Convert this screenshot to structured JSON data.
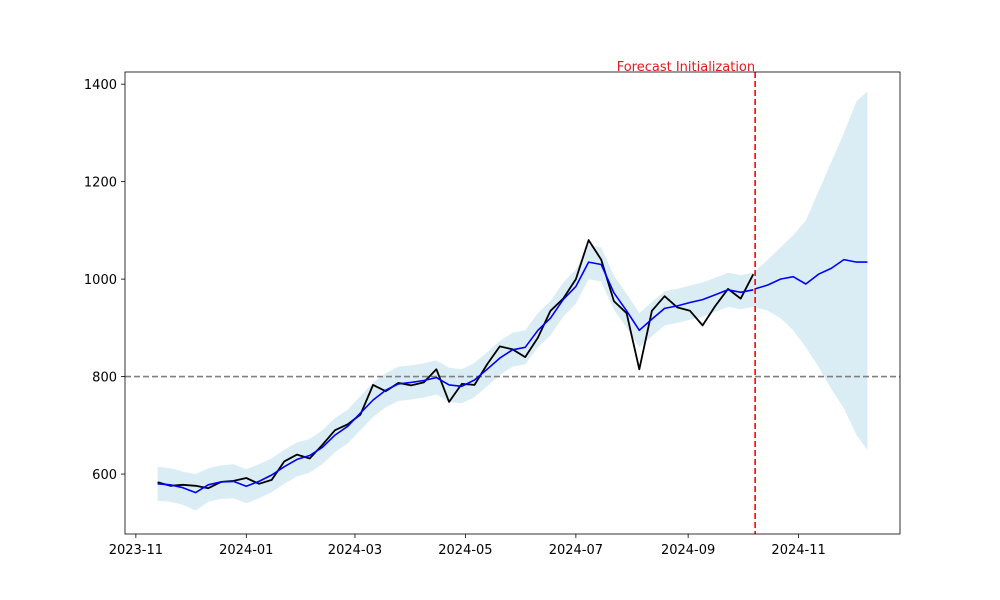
{
  "chart_data": {
    "type": "line",
    "title": "",
    "xlabel": "",
    "ylabel": "",
    "xlim": [
      "2023-10-26",
      "2024-12-27"
    ],
    "ylim": [
      477,
      1425
    ],
    "x_ticks": [
      "2023-11",
      "2024-01",
      "2024-03",
      "2024-05",
      "2024-07",
      "2024-09",
      "2024-11"
    ],
    "y_ticks": [
      600,
      800,
      1000,
      1200,
      1400
    ],
    "grid": false,
    "legend": "none",
    "reference_line": {
      "y": 800,
      "color": "#808080",
      "style": "dashed"
    },
    "forecast_initialization": {
      "date": "2024-10-08",
      "label": "Forecast Initialization",
      "color": "#e31a1c"
    },
    "colors": {
      "actual": "#000000",
      "model": "#0000ff",
      "band": "#add8e6",
      "forecast_line": "#ff0000",
      "reference": "#808080"
    },
    "actual": [
      [
        "2023-11-13",
        583
      ],
      [
        "2023-11-20",
        576
      ],
      [
        "2023-11-27",
        578
      ],
      [
        "2023-12-04",
        576
      ],
      [
        "2023-12-11",
        571
      ],
      [
        "2023-12-18",
        584
      ],
      [
        "2023-12-25",
        586
      ],
      [
        "2024-01-01",
        592
      ],
      [
        "2024-01-08",
        580
      ],
      [
        "2024-01-15",
        588
      ],
      [
        "2024-01-22",
        626
      ],
      [
        "2024-01-29",
        640
      ],
      [
        "2024-02-05",
        632
      ],
      [
        "2024-02-12",
        660
      ],
      [
        "2024-02-19",
        690
      ],
      [
        "2024-02-26",
        702
      ],
      [
        "2024-03-04",
        722
      ],
      [
        "2024-03-11",
        783
      ],
      [
        "2024-03-18",
        770
      ],
      [
        "2024-03-25",
        787
      ],
      [
        "2024-04-01",
        782
      ],
      [
        "2024-04-08",
        788
      ],
      [
        "2024-04-15",
        815
      ],
      [
        "2024-04-22",
        748
      ],
      [
        "2024-04-29",
        785
      ],
      [
        "2024-05-06",
        783
      ],
      [
        "2024-05-13",
        825
      ],
      [
        "2024-05-20",
        862
      ],
      [
        "2024-05-27",
        856
      ],
      [
        "2024-06-03",
        840
      ],
      [
        "2024-06-10",
        880
      ],
      [
        "2024-06-17",
        935
      ],
      [
        "2024-06-24",
        960
      ],
      [
        "2024-07-01",
        1000
      ],
      [
        "2024-07-08",
        1080
      ],
      [
        "2024-07-15",
        1040
      ],
      [
        "2024-07-22",
        955
      ],
      [
        "2024-07-29",
        930
      ],
      [
        "2024-08-05",
        815
      ],
      [
        "2024-08-12",
        935
      ],
      [
        "2024-08-19",
        965
      ],
      [
        "2024-08-26",
        942
      ],
      [
        "2024-09-02",
        935
      ],
      [
        "2024-09-09",
        905
      ],
      [
        "2024-09-16",
        945
      ],
      [
        "2024-09-23",
        980
      ],
      [
        "2024-09-30",
        960
      ],
      [
        "2024-10-07",
        1010
      ]
    ],
    "model_fit": [
      [
        "2023-11-13",
        580
      ],
      [
        "2023-11-20",
        578
      ],
      [
        "2023-11-27",
        572
      ],
      [
        "2023-12-04",
        562
      ],
      [
        "2023-12-11",
        578
      ],
      [
        "2023-12-18",
        584
      ],
      [
        "2023-12-25",
        585
      ],
      [
        "2024-01-01",
        575
      ],
      [
        "2024-01-08",
        585
      ],
      [
        "2024-01-15",
        598
      ],
      [
        "2024-01-22",
        615
      ],
      [
        "2024-01-29",
        630
      ],
      [
        "2024-02-05",
        638
      ],
      [
        "2024-02-12",
        655
      ],
      [
        "2024-02-19",
        680
      ],
      [
        "2024-02-26",
        698
      ],
      [
        "2024-03-04",
        725
      ],
      [
        "2024-03-11",
        752
      ],
      [
        "2024-03-18",
        772
      ],
      [
        "2024-03-25",
        785
      ],
      [
        "2024-04-01",
        788
      ],
      [
        "2024-04-08",
        792
      ],
      [
        "2024-04-15",
        798
      ],
      [
        "2024-04-22",
        783
      ],
      [
        "2024-04-29",
        780
      ],
      [
        "2024-05-06",
        793
      ],
      [
        "2024-05-13",
        815
      ],
      [
        "2024-05-20",
        838
      ],
      [
        "2024-05-27",
        855
      ],
      [
        "2024-06-03",
        860
      ],
      [
        "2024-06-10",
        895
      ],
      [
        "2024-06-17",
        920
      ],
      [
        "2024-06-24",
        958
      ],
      [
        "2024-07-01",
        985
      ],
      [
        "2024-07-08",
        1035
      ],
      [
        "2024-07-15",
        1030
      ],
      [
        "2024-07-22",
        972
      ],
      [
        "2024-07-29",
        935
      ],
      [
        "2024-08-05",
        895
      ],
      [
        "2024-08-12",
        918
      ],
      [
        "2024-08-19",
        940
      ],
      [
        "2024-08-26",
        945
      ],
      [
        "2024-09-02",
        952
      ],
      [
        "2024-09-09",
        958
      ],
      [
        "2024-09-16",
        968
      ],
      [
        "2024-09-23",
        978
      ],
      [
        "2024-09-30",
        973
      ],
      [
        "2024-10-07",
        978
      ]
    ],
    "forecast": [
      [
        "2024-10-08",
        980
      ],
      [
        "2024-10-15",
        988
      ],
      [
        "2024-10-22",
        1000
      ],
      [
        "2024-10-29",
        1005
      ],
      [
        "2024-11-05",
        990
      ],
      [
        "2024-11-12",
        1010
      ],
      [
        "2024-11-19",
        1022
      ],
      [
        "2024-11-26",
        1040
      ],
      [
        "2024-12-03",
        1035
      ],
      [
        "2024-12-09",
        1035
      ]
    ],
    "band_upper": [
      [
        "2023-11-13",
        615
      ],
      [
        "2023-11-20",
        612
      ],
      [
        "2023-11-27",
        605
      ],
      [
        "2023-12-04",
        600
      ],
      [
        "2023-12-11",
        612
      ],
      [
        "2023-12-18",
        618
      ],
      [
        "2023-12-25",
        620
      ],
      [
        "2024-01-01",
        610
      ],
      [
        "2024-01-08",
        620
      ],
      [
        "2024-01-15",
        632
      ],
      [
        "2024-01-22",
        650
      ],
      [
        "2024-01-29",
        665
      ],
      [
        "2024-02-05",
        672
      ],
      [
        "2024-02-12",
        690
      ],
      [
        "2024-02-19",
        715
      ],
      [
        "2024-02-26",
        732
      ],
      [
        "2024-03-04",
        760
      ],
      [
        "2024-03-11",
        788
      ],
      [
        "2024-03-18",
        807
      ],
      [
        "2024-03-25",
        820
      ],
      [
        "2024-04-01",
        823
      ],
      [
        "2024-04-08",
        827
      ],
      [
        "2024-04-15",
        833
      ],
      [
        "2024-04-22",
        818
      ],
      [
        "2024-04-29",
        815
      ],
      [
        "2024-05-06",
        828
      ],
      [
        "2024-05-13",
        850
      ],
      [
        "2024-05-20",
        873
      ],
      [
        "2024-05-27",
        890
      ],
      [
        "2024-06-03",
        895
      ],
      [
        "2024-06-10",
        930
      ],
      [
        "2024-06-17",
        955
      ],
      [
        "2024-06-24",
        993
      ],
      [
        "2024-07-01",
        1020
      ],
      [
        "2024-07-08",
        1070
      ],
      [
        "2024-07-15",
        1065
      ],
      [
        "2024-07-22",
        1007
      ],
      [
        "2024-07-29",
        970
      ],
      [
        "2024-08-05",
        930
      ],
      [
        "2024-08-12",
        953
      ],
      [
        "2024-08-19",
        975
      ],
      [
        "2024-08-26",
        980
      ],
      [
        "2024-09-02",
        987
      ],
      [
        "2024-09-09",
        993
      ],
      [
        "2024-09-16",
        1003
      ],
      [
        "2024-09-23",
        1013
      ],
      [
        "2024-09-30",
        1008
      ],
      [
        "2024-10-07",
        1013
      ],
      [
        "2024-10-15",
        1040
      ],
      [
        "2024-10-22",
        1065
      ],
      [
        "2024-10-29",
        1090
      ],
      [
        "2024-11-05",
        1120
      ],
      [
        "2024-11-12",
        1180
      ],
      [
        "2024-11-19",
        1240
      ],
      [
        "2024-11-26",
        1300
      ],
      [
        "2024-12-03",
        1365
      ],
      [
        "2024-12-09",
        1385
      ]
    ],
    "band_lower": [
      [
        "2023-11-13",
        545
      ],
      [
        "2023-11-20",
        543
      ],
      [
        "2023-11-27",
        537
      ],
      [
        "2023-12-04",
        525
      ],
      [
        "2023-12-11",
        543
      ],
      [
        "2023-12-18",
        549
      ],
      [
        "2023-12-25",
        550
      ],
      [
        "2024-01-01",
        540
      ],
      [
        "2024-01-08",
        550
      ],
      [
        "2024-01-15",
        563
      ],
      [
        "2024-01-22",
        580
      ],
      [
        "2024-01-29",
        595
      ],
      [
        "2024-02-05",
        603
      ],
      [
        "2024-02-12",
        620
      ],
      [
        "2024-02-19",
        645
      ],
      [
        "2024-02-26",
        663
      ],
      [
        "2024-03-04",
        690
      ],
      [
        "2024-03-11",
        717
      ],
      [
        "2024-03-18",
        737
      ],
      [
        "2024-03-25",
        750
      ],
      [
        "2024-04-01",
        753
      ],
      [
        "2024-04-08",
        757
      ],
      [
        "2024-04-15",
        763
      ],
      [
        "2024-04-22",
        748
      ],
      [
        "2024-04-29",
        745
      ],
      [
        "2024-05-06",
        758
      ],
      [
        "2024-05-13",
        780
      ],
      [
        "2024-05-20",
        803
      ],
      [
        "2024-05-27",
        820
      ],
      [
        "2024-06-03",
        825
      ],
      [
        "2024-06-10",
        860
      ],
      [
        "2024-06-17",
        885
      ],
      [
        "2024-06-24",
        923
      ],
      [
        "2024-07-01",
        950
      ],
      [
        "2024-07-08",
        1000
      ],
      [
        "2024-07-15",
        995
      ],
      [
        "2024-07-22",
        937
      ],
      [
        "2024-07-29",
        900
      ],
      [
        "2024-08-05",
        860
      ],
      [
        "2024-08-12",
        883
      ],
      [
        "2024-08-19",
        905
      ],
      [
        "2024-08-26",
        910
      ],
      [
        "2024-09-02",
        917
      ],
      [
        "2024-09-09",
        923
      ],
      [
        "2024-09-16",
        933
      ],
      [
        "2024-09-23",
        943
      ],
      [
        "2024-09-30",
        938
      ],
      [
        "2024-10-07",
        943
      ],
      [
        "2024-10-15",
        935
      ],
      [
        "2024-10-22",
        920
      ],
      [
        "2024-10-29",
        895
      ],
      [
        "2024-11-05",
        860
      ],
      [
        "2024-11-12",
        820
      ],
      [
        "2024-11-19",
        775
      ],
      [
        "2024-11-26",
        735
      ],
      [
        "2024-12-03",
        680
      ],
      [
        "2024-12-09",
        650
      ]
    ]
  }
}
